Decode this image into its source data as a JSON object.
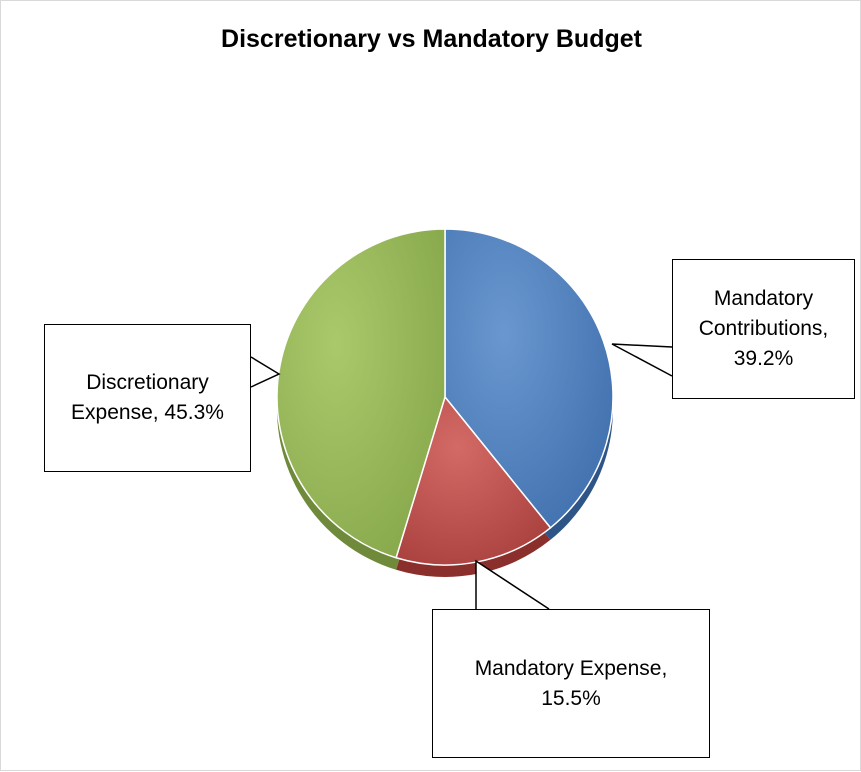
{
  "chart_data": {
    "type": "pie",
    "title": "Discretionary vs Mandatory Budget",
    "slices": [
      {
        "label_line1": "Mandatory",
        "label_line2": "Contributions,",
        "label_line3": "39.2%",
        "value": 39.2,
        "color": "#4f81bd"
      },
      {
        "label_line1": "Mandatory Expense,",
        "label_line2": "15.5%",
        "value": 15.5,
        "color": "#c0504d"
      },
      {
        "label_line1": "Discretionary",
        "label_line2": "Expense, 45.3%",
        "value": 45.3,
        "color": "#9bbb59"
      }
    ],
    "legend": "none",
    "data_labels": "callout"
  }
}
